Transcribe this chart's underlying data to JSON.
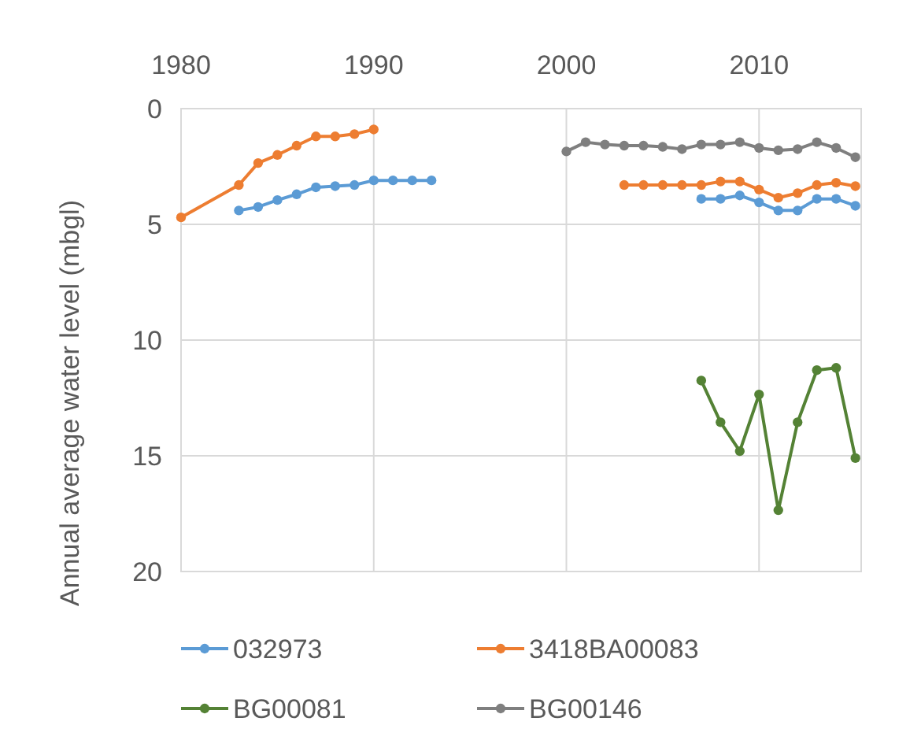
{
  "chart_data": {
    "type": "line",
    "ylabel": "Annual average water level (mbgl)",
    "xlim": [
      1980,
      2015.3
    ],
    "xticks": [
      1980,
      1990,
      2000,
      2010
    ],
    "ylim": [
      20,
      0
    ],
    "yticks": [
      0,
      5,
      10,
      15,
      20
    ],
    "grid": true,
    "legend": "bottom",
    "marker": "circle",
    "line_style": "solid",
    "series": [
      {
        "name": "032973",
        "color": "#5b9bd5",
        "x": [
          1983,
          1984,
          1985,
          1986,
          1987,
          1988,
          1989,
          1990,
          1991,
          1992,
          1993,
          1994,
          2007,
          2008,
          2009,
          2010,
          2011,
          2012,
          2013,
          2014,
          2015
        ],
        "values": [
          4.4,
          4.25,
          3.95,
          3.7,
          3.4,
          3.35,
          3.3,
          3.1,
          3.1,
          3.1,
          3.1,
          null,
          3.9,
          3.9,
          3.75,
          4.05,
          4.4,
          4.4,
          3.9,
          3.9,
          4.2
        ]
      },
      {
        "name": "3418BA00083",
        "color": "#ed7d31",
        "x": [
          1980,
          1983,
          1984,
          1985,
          1986,
          1987,
          1988,
          1989,
          1990,
          1991,
          2003,
          2004,
          2005,
          2006,
          2007,
          2008,
          2009,
          2010,
          2011,
          2012,
          2013,
          2014,
          2015
        ],
        "values": [
          4.7,
          3.3,
          2.35,
          2.0,
          1.6,
          1.2,
          1.2,
          1.1,
          0.9,
          null,
          3.3,
          3.3,
          3.3,
          3.3,
          3.3,
          3.15,
          3.15,
          3.5,
          3.85,
          3.65,
          3.3,
          3.2,
          3.35
        ]
      },
      {
        "name": "BG00081",
        "color": "#548235",
        "x": [
          2007,
          2008,
          2009,
          2010,
          2011,
          2012,
          2013,
          2014,
          2015
        ],
        "values": [
          11.75,
          13.55,
          14.8,
          12.35,
          17.35,
          13.55,
          11.3,
          11.2,
          15.1
        ]
      },
      {
        "name": "BG00146",
        "color": "#7f7f7f",
        "x": [
          2000,
          2001,
          2002,
          2003,
          2004,
          2005,
          2006,
          2007,
          2008,
          2009,
          2010,
          2011,
          2012,
          2013,
          2014,
          2015
        ],
        "values": [
          1.85,
          1.45,
          1.55,
          1.6,
          1.6,
          1.65,
          1.75,
          1.55,
          1.55,
          1.45,
          1.7,
          1.8,
          1.75,
          1.45,
          1.7,
          2.1
        ]
      }
    ]
  }
}
